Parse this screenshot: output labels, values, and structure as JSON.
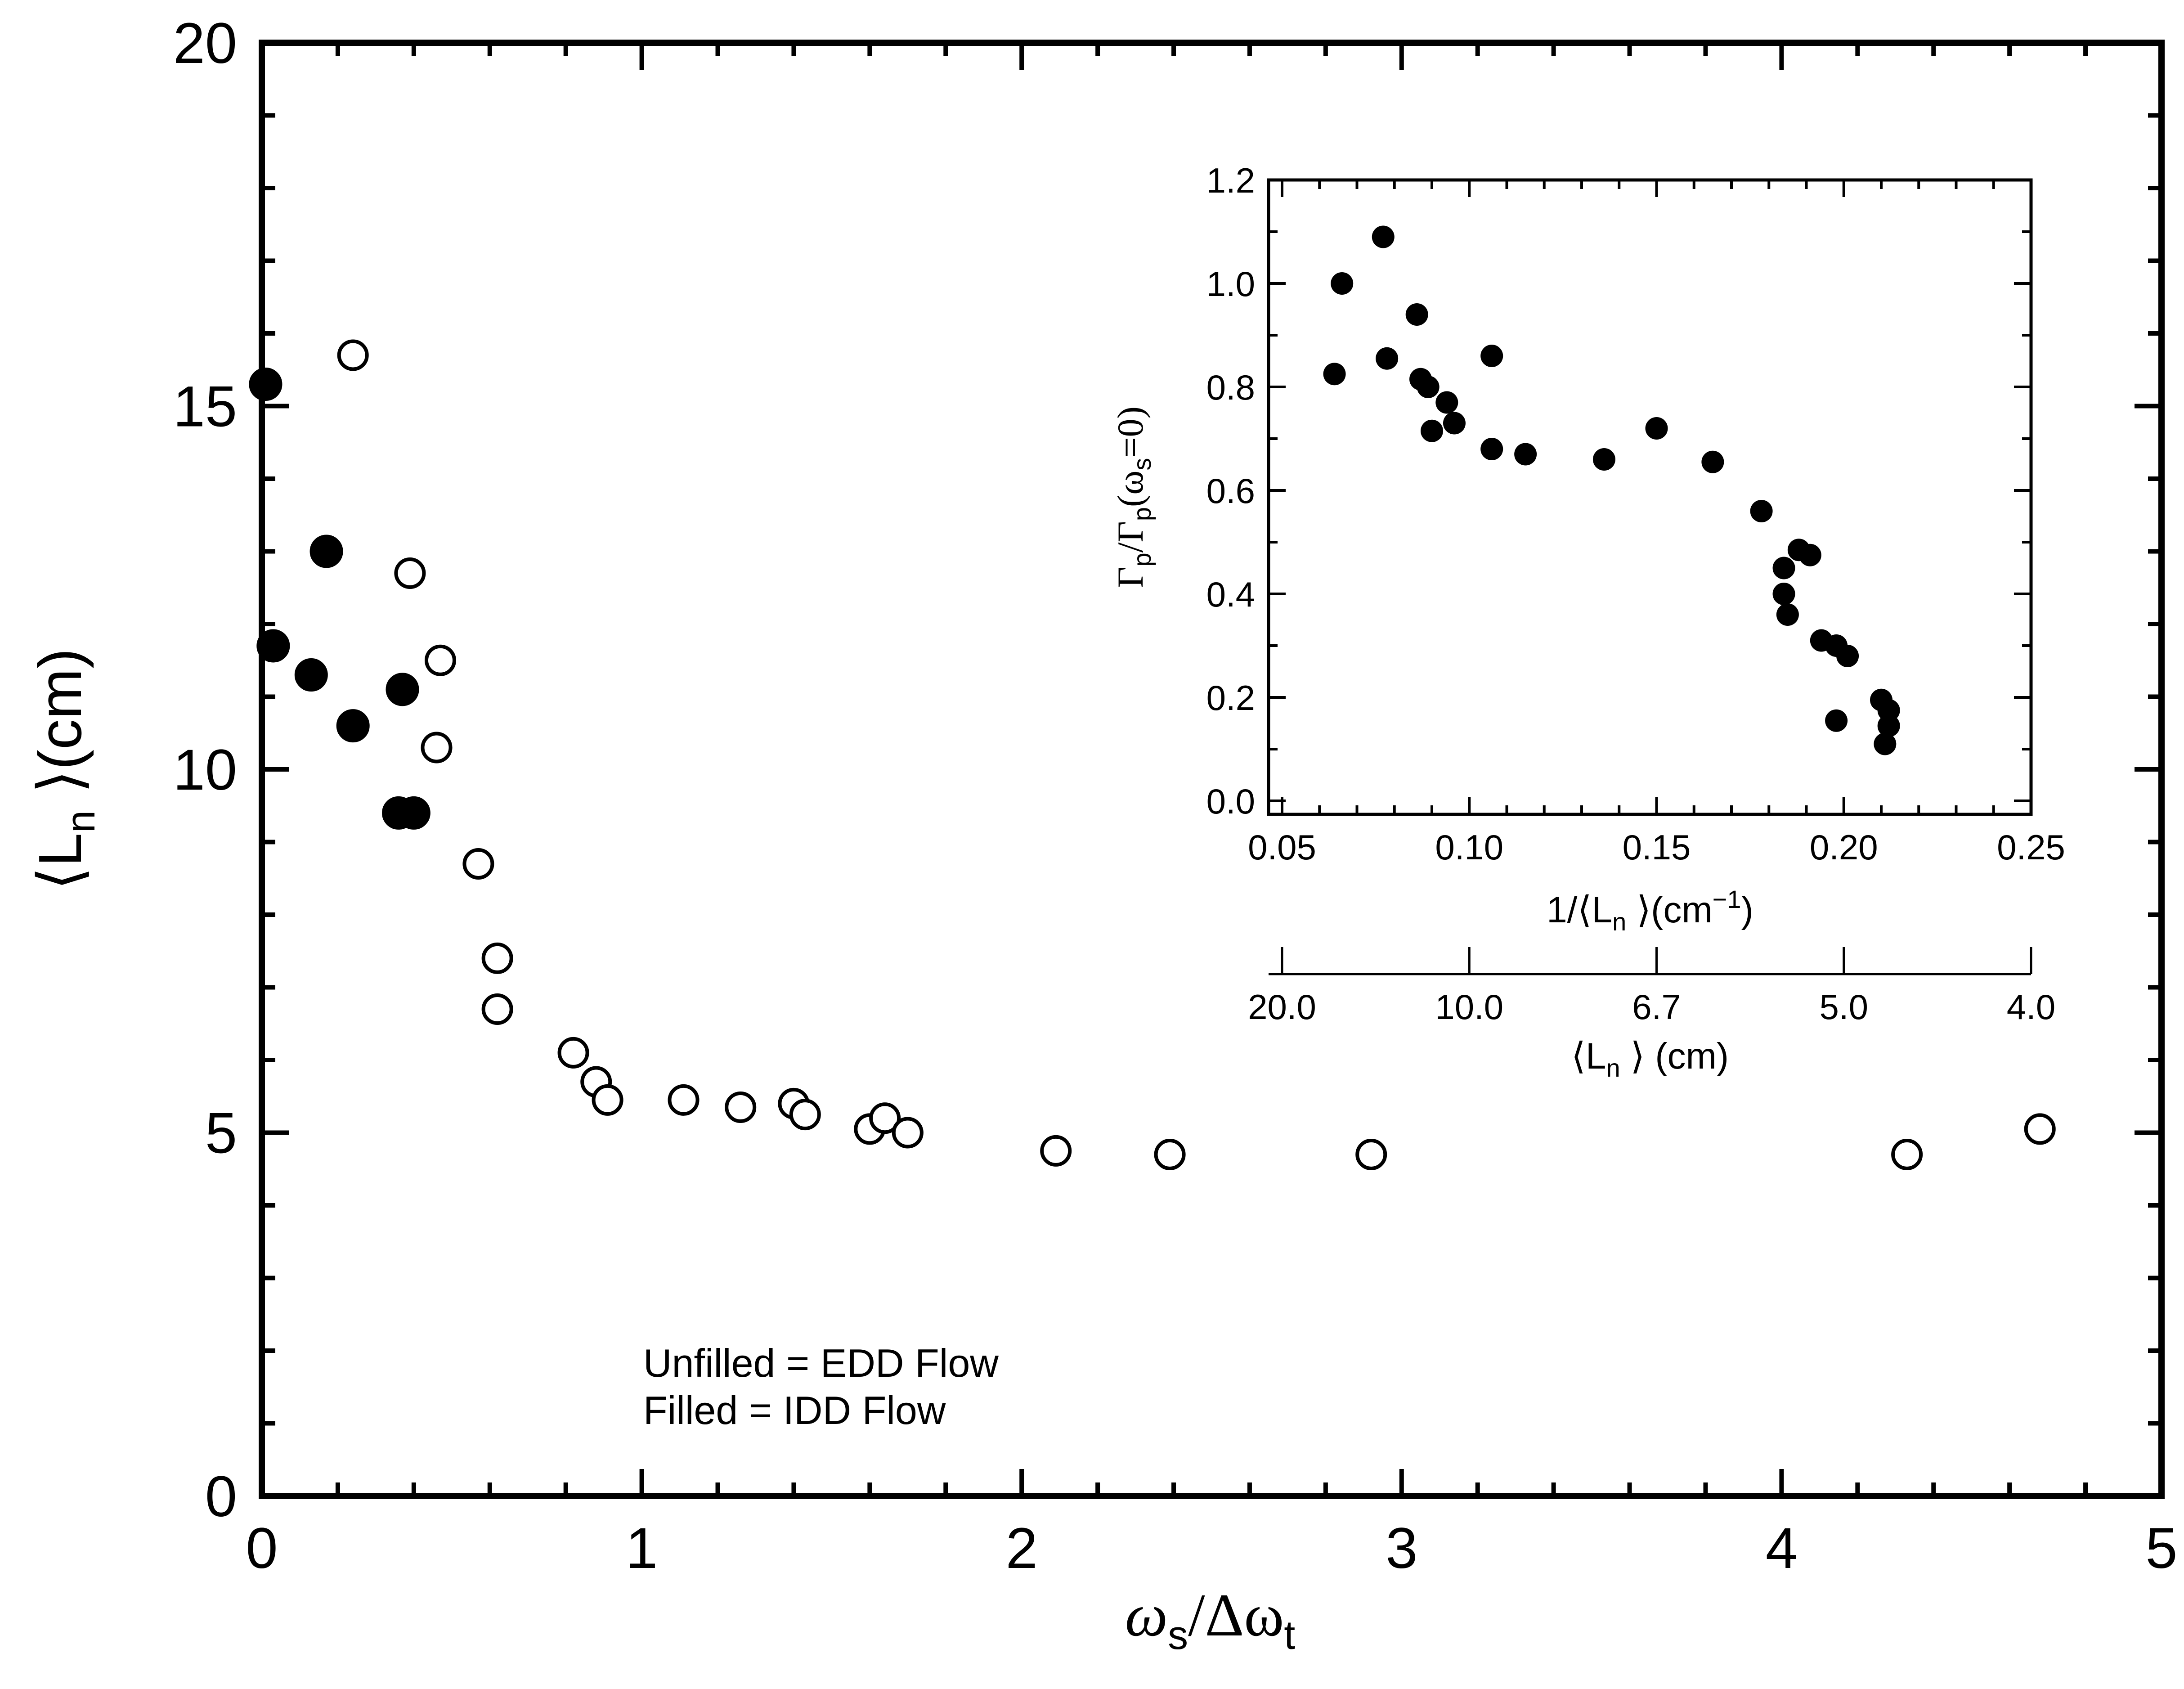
{
  "chart_data": [
    {
      "type": "scatter",
      "x_axis": {
        "range": [
          0,
          5
        ],
        "ticks": [
          "0",
          "1",
          "2",
          "3",
          "4",
          "5"
        ],
        "label_base": "ω",
        "label_sub1": "s",
        "label_mid": "/Δω",
        "label_sub2": "t"
      },
      "y_axis": {
        "range": [
          0,
          20
        ],
        "ticks": [
          "0",
          "5",
          "10",
          "15",
          "20"
        ],
        "label_pre": "⟨L",
        "label_sub": "n",
        "label_post": " ⟩(cm)"
      },
      "legend": {
        "unfilled": "Unfilled = EDD Flow",
        "filled": "Filled = IDD Flow"
      },
      "series": [
        {
          "style": "open",
          "points": [
            [
              0.24,
              15.7
            ],
            [
              0.39,
              12.7
            ],
            [
              0.47,
              11.5
            ],
            [
              0.46,
              10.3
            ],
            [
              0.57,
              8.7
            ],
            [
              0.62,
              7.4
            ],
            [
              0.62,
              6.7
            ],
            [
              0.82,
              6.1
            ],
            [
              0.88,
              5.7
            ],
            [
              0.91,
              5.45
            ],
            [
              1.11,
              5.45
            ],
            [
              1.26,
              5.35
            ],
            [
              1.4,
              5.4
            ],
            [
              1.43,
              5.25
            ],
            [
              1.6,
              5.05
            ],
            [
              1.64,
              5.2
            ],
            [
              1.7,
              5.0
            ],
            [
              2.09,
              4.75
            ],
            [
              2.39,
              4.7
            ],
            [
              2.92,
              4.7
            ],
            [
              4.33,
              4.7
            ],
            [
              4.68,
              5.05
            ]
          ]
        },
        {
          "style": "filled",
          "points": [
            [
              0.01,
              15.3
            ],
            [
              0.03,
              11.7
            ],
            [
              0.13,
              11.3
            ],
            [
              0.17,
              13.0
            ],
            [
              0.24,
              10.6
            ],
            [
              0.37,
              11.1
            ],
            [
              0.36,
              9.4
            ],
            [
              0.4,
              9.4
            ]
          ]
        }
      ]
    },
    {
      "type": "scatter",
      "x_axis": {
        "range": [
          0.05,
          0.25
        ],
        "ticks": [
          "0.05",
          "0.10",
          "0.15",
          "0.20",
          "0.25"
        ],
        "label_pre": "1/⟨L",
        "label_sub": "n",
        "label_mid": " ⟩(cm",
        "label_sup": "−1",
        "label_post": ")"
      },
      "secondary_x_axis": {
        "ticks": [
          "20.0",
          "10.0",
          "6.7",
          "5.0",
          "4.0"
        ],
        "tick_positions": [
          0.05,
          0.1,
          0.15,
          0.2,
          0.25
        ],
        "label_pre": "⟨L",
        "label_sub": "n",
        "label_post": " ⟩ (cm)"
      },
      "y_axis": {
        "range": [
          0.0,
          1.2
        ],
        "ticks": [
          "0.0",
          "0.2",
          "0.4",
          "0.6",
          "0.8",
          "1.0",
          "1.2"
        ],
        "label_a": "Γ",
        "label_sub_a": "p",
        "label_b": "/Γ",
        "label_sub_b": "p",
        "label_c": "(ω",
        "label_sub_c": "s",
        "label_d": "=0)"
      },
      "series": [
        {
          "style": "filled",
          "points": [
            [
              0.064,
              0.825
            ],
            [
              0.066,
              1.0
            ],
            [
              0.077,
              1.09
            ],
            [
              0.078,
              0.855
            ],
            [
              0.086,
              0.94
            ],
            [
              0.087,
              0.815
            ],
            [
              0.089,
              0.8
            ],
            [
              0.09,
              0.715
            ],
            [
              0.094,
              0.77
            ],
            [
              0.096,
              0.73
            ],
            [
              0.106,
              0.68
            ],
            [
              0.106,
              0.86
            ],
            [
              0.115,
              0.67
            ],
            [
              0.136,
              0.66
            ],
            [
              0.15,
              0.72
            ],
            [
              0.165,
              0.655
            ],
            [
              0.178,
              0.56
            ],
            [
              0.184,
              0.45
            ],
            [
              0.184,
              0.4
            ],
            [
              0.185,
              0.36
            ],
            [
              0.188,
              0.485
            ],
            [
              0.191,
              0.475
            ],
            [
              0.194,
              0.31
            ],
            [
              0.198,
              0.3
            ],
            [
              0.198,
              0.155
            ],
            [
              0.201,
              0.28
            ],
            [
              0.21,
              0.195
            ],
            [
              0.211,
              0.11
            ],
            [
              0.212,
              0.145
            ],
            [
              0.212,
              0.175
            ]
          ]
        }
      ]
    }
  ]
}
